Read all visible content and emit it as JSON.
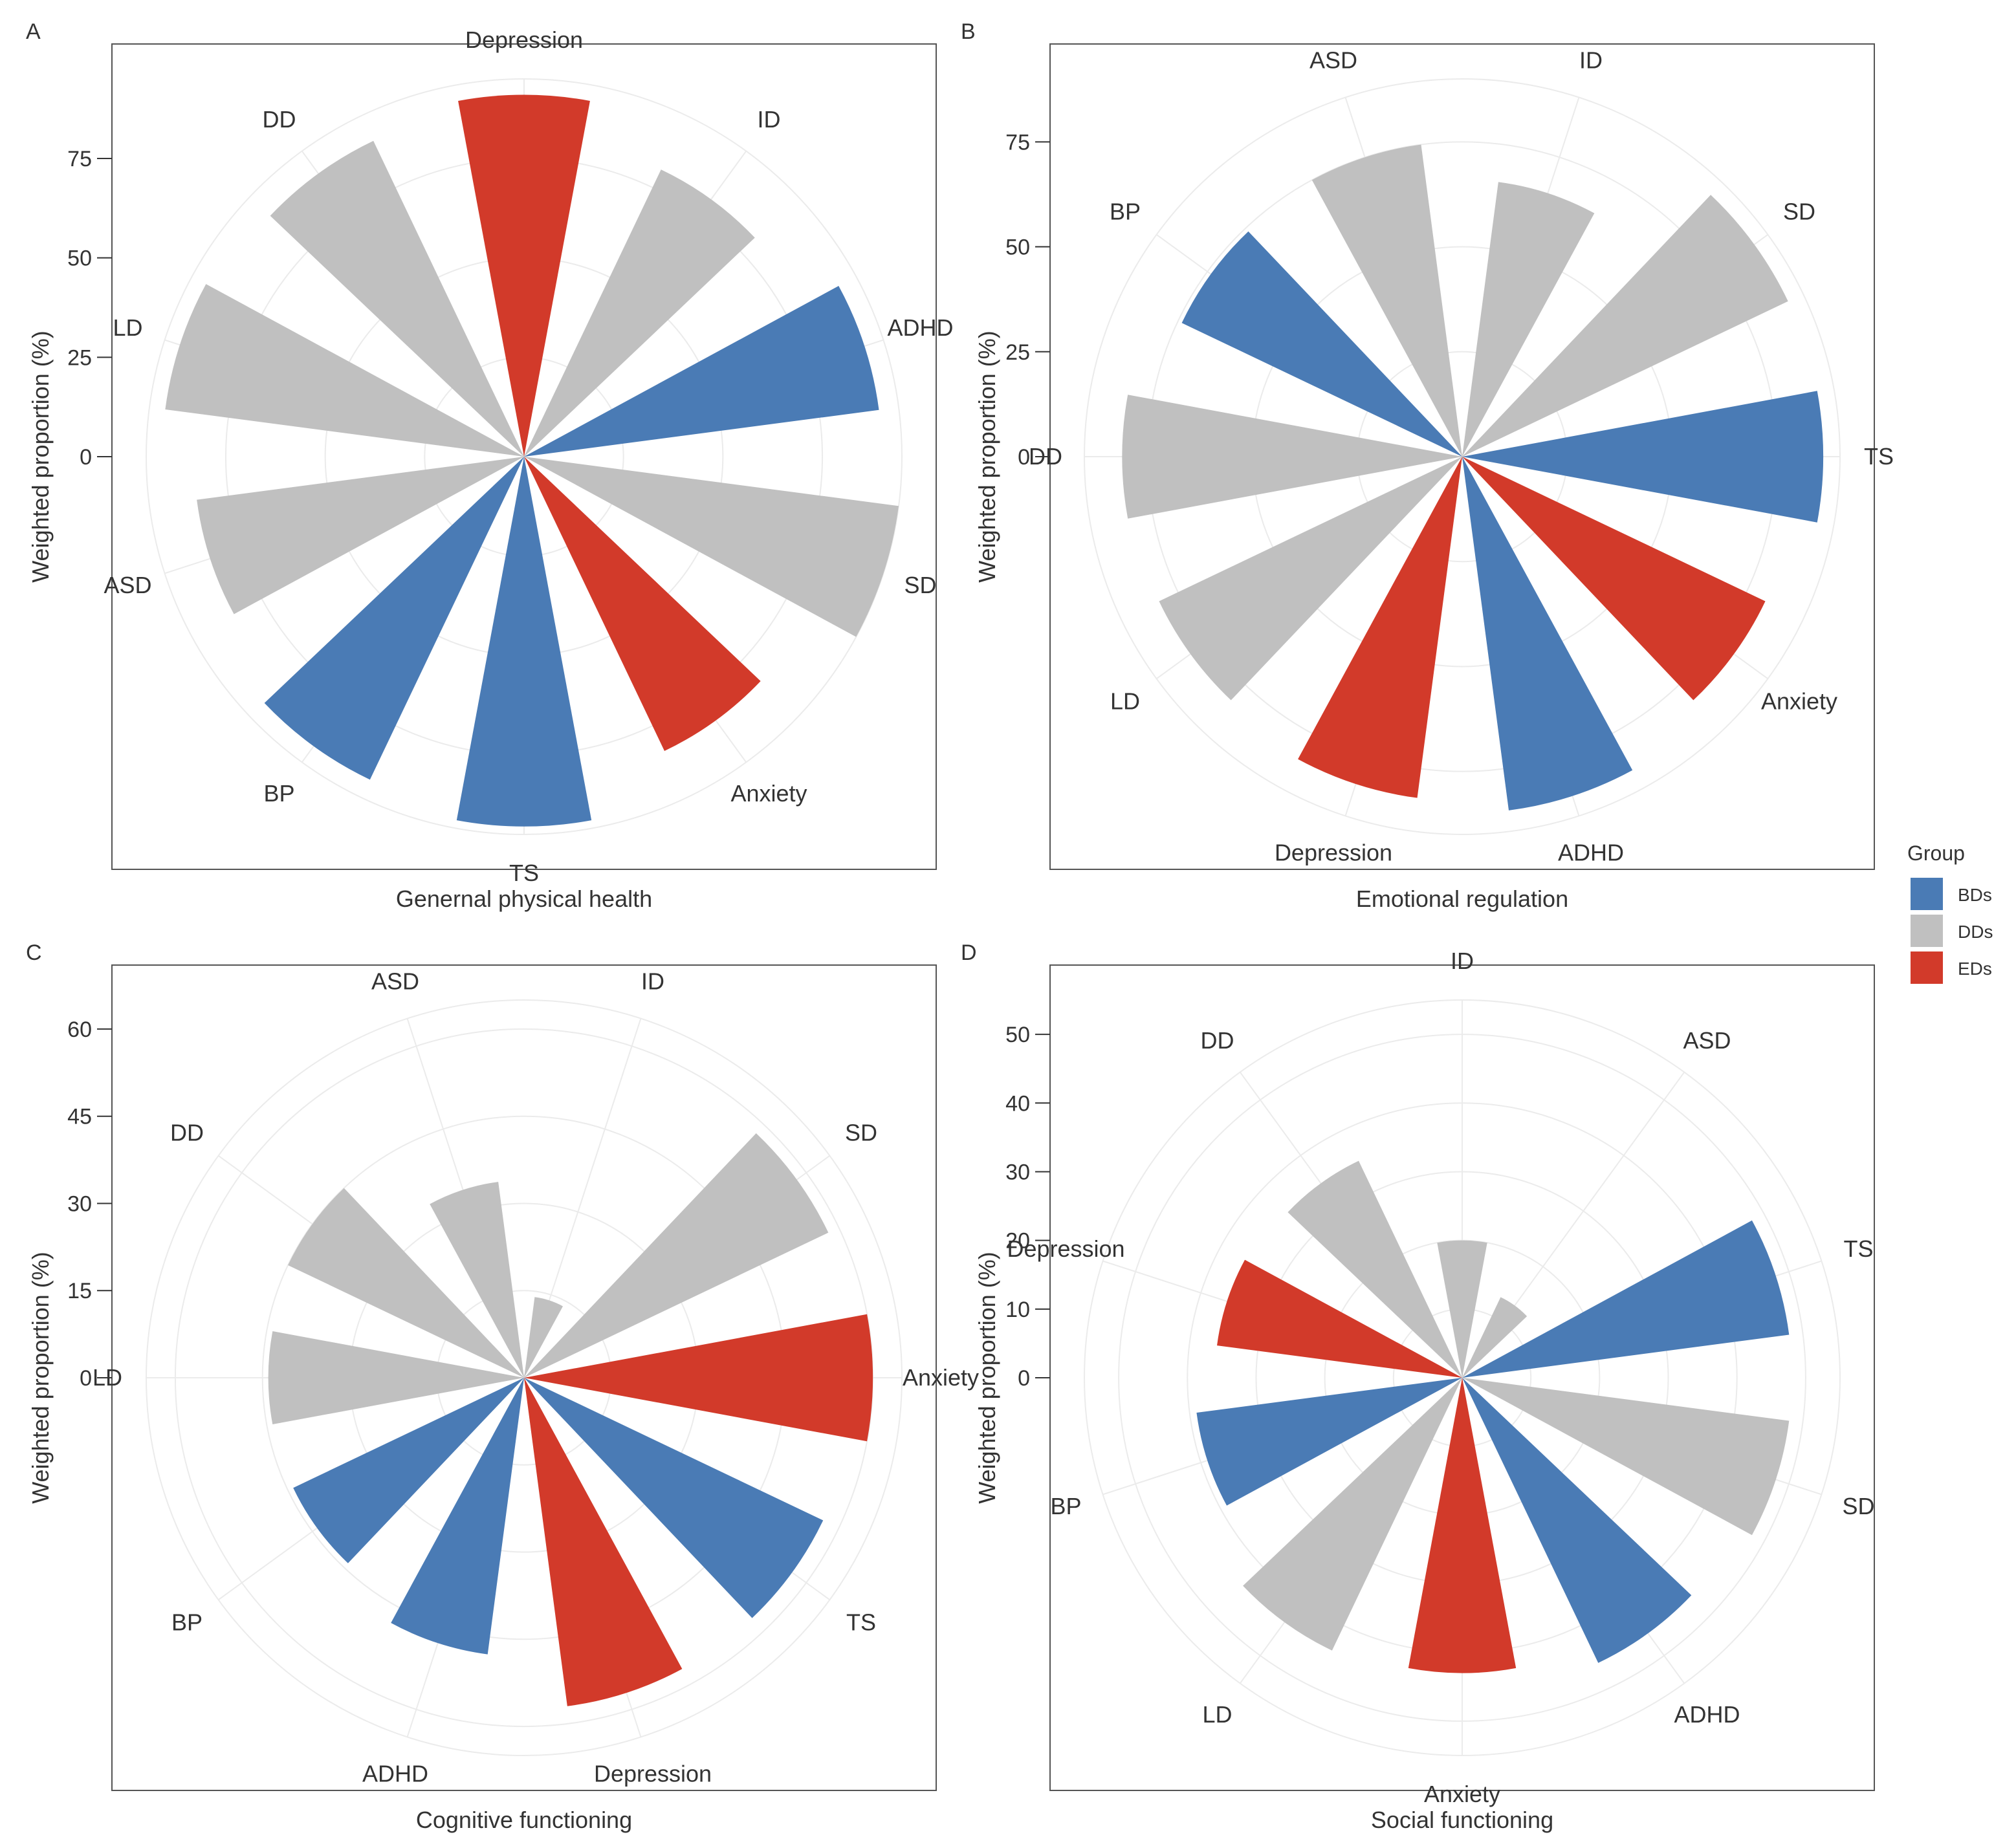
{
  "chart_data": [
    {
      "type": "polar-bar",
      "panel": "A",
      "title": "Genernal physical health",
      "ylabel": "Weighted proportion (%)",
      "ticks": [
        0,
        25,
        50,
        75
      ],
      "ylim": [
        0,
        95
      ],
      "categories": [
        "Depression",
        "ID",
        "ADHD",
        "SD",
        "Anxiety",
        "TS",
        "BP",
        "ASD",
        "LD",
        "DD"
      ],
      "groups": [
        "EDs",
        "DDs",
        "BDs",
        "DDs",
        "EDs",
        "BDs",
        "BDs",
        "DDs",
        "DDs",
        "DDs"
      ],
      "values": [
        91,
        80,
        90,
        95,
        82,
        93,
        90,
        83,
        91,
        88
      ]
    },
    {
      "type": "polar-bar",
      "panel": "B",
      "title": "Emotional regulation",
      "ylabel": "Weighted proportion (%)",
      "ticks": [
        0,
        25,
        50,
        75
      ],
      "ylim": [
        0,
        90
      ],
      "categories": [
        "ASD",
        "ID",
        "SD",
        "TS",
        "Anxiety",
        "ADHD",
        "Depression",
        "LD",
        "DD",
        "BP"
      ],
      "groups": [
        "DDs",
        "DDs",
        "DDs",
        "BDs",
        "EDs",
        "BDs",
        "EDs",
        "DDs",
        "DDs",
        "BDs"
      ],
      "values": [
        75,
        66,
        86,
        86,
        80,
        85,
        82,
        80,
        81,
        74
      ]
    },
    {
      "type": "polar-bar",
      "panel": "C",
      "title": "Cognitive functioning",
      "ylabel": "Weighted proportion (%)",
      "ticks": [
        0,
        15,
        30,
        45,
        60
      ],
      "ylim": [
        0,
        65
      ],
      "categories": [
        "ID",
        "SD",
        "Anxiety",
        "TS",
        "Depression",
        "ADHD",
        "BP",
        "LD",
        "DD",
        "ASD"
      ],
      "groups": [
        "DDs",
        "DDs",
        "EDs",
        "BDs",
        "EDs",
        "BDs",
        "BDs",
        "DDs",
        "DDs",
        "DDs"
      ],
      "values": [
        14,
        58,
        60,
        57,
        57,
        48,
        44,
        44,
        45,
        34
      ]
    },
    {
      "type": "polar-bar",
      "panel": "D",
      "title": "Social functioning",
      "ylabel": "Weighted proportion (%)",
      "ticks": [
        0,
        10,
        20,
        30,
        40,
        50
      ],
      "ylim": [
        0,
        55
      ],
      "categories": [
        "ASD",
        "TS",
        "SD",
        "ADHD",
        "Anxiety",
        "LD",
        "BP",
        "Depression",
        "DD",
        "ID"
      ],
      "groups": [
        "DDs",
        "BDs",
        "DDs",
        "BDs",
        "EDs",
        "DDs",
        "BDs",
        "EDs",
        "DDs",
        "DDs"
      ],
      "values": [
        13,
        48,
        48,
        46,
        43,
        44,
        39,
        36,
        35,
        20
      ]
    }
  ],
  "panel_labels": [
    "A",
    "B",
    "C",
    "D"
  ],
  "legend": {
    "title": "Group",
    "entries": [
      {
        "label": "BDs",
        "color": "#4a7bb5"
      },
      {
        "label": "DDs",
        "color": "#c0c0c0"
      },
      {
        "label": "EDs",
        "color": "#d23a2a"
      }
    ]
  }
}
